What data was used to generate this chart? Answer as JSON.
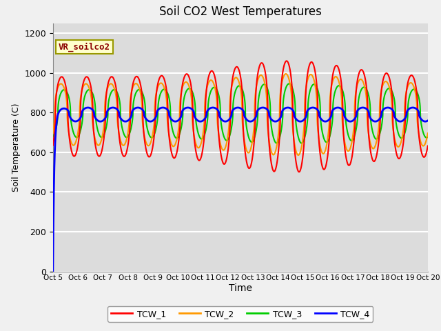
{
  "title": "Soil CO2 West Temperatures",
  "xlabel": "Time",
  "ylabel": "Soil Temperature (C)",
  "annotation": "VR_soilco2",
  "ylim": [
    0,
    1250
  ],
  "yticks": [
    0,
    200,
    400,
    600,
    800,
    1000,
    1200
  ],
  "xtick_labels": [
    "Oct 5",
    "Oct 6",
    "Oct 7",
    "Oct 8",
    "Oct 9",
    "Oct 10",
    "Oct 11",
    "Oct 12",
    "Oct 13",
    "Oct 14",
    "Oct 15",
    "Oct 16",
    "Oct 17",
    "Oct 18",
    "Oct 19",
    "Oct 20"
  ],
  "colors": {
    "TCW_1": "#ff0000",
    "TCW_2": "#ff9900",
    "TCW_3": "#00cc00",
    "TCW_4": "#0000ff"
  },
  "background_color": "#dcdcdc",
  "grid_color": "#ffffff",
  "fig_facecolor": "#f0f0f0"
}
